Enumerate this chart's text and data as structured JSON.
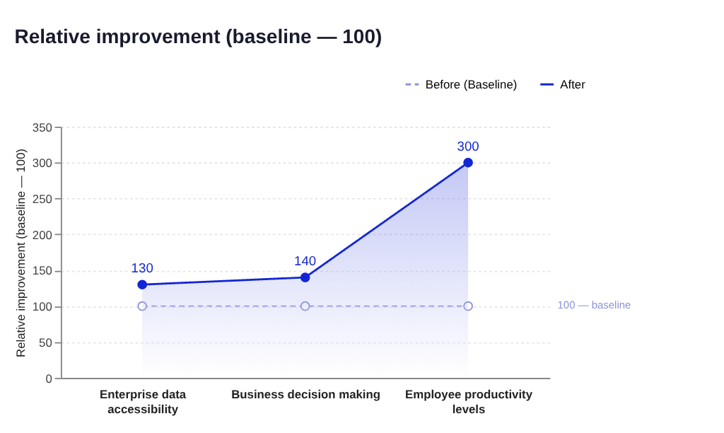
{
  "chart_data": {
    "type": "line",
    "title": "Relative improvement (baseline — 100)",
    "ylabel": "Relative improvement (baseline — 100)",
    "categories": [
      "Enterprise data accessibility",
      "Business decision making",
      "Employee productivity levels"
    ],
    "series": [
      {
        "name": "Before (Baseline)",
        "color": "#8d92d9",
        "values": [
          100,
          100,
          100
        ],
        "line_style": "dashed",
        "marker": "circle"
      },
      {
        "name": "After",
        "color": "#1326d6",
        "values": [
          130,
          140,
          300
        ],
        "type": "area",
        "line_style": "solid",
        "marker": "circle",
        "data_labels": true
      }
    ],
    "ylim": [
      0,
      350
    ],
    "yticks": [
      0,
      50,
      100,
      150,
      200,
      250,
      300,
      350
    ],
    "grid": "y",
    "legend": "top right",
    "annotations": [
      "100 — baseline"
    ]
  }
}
